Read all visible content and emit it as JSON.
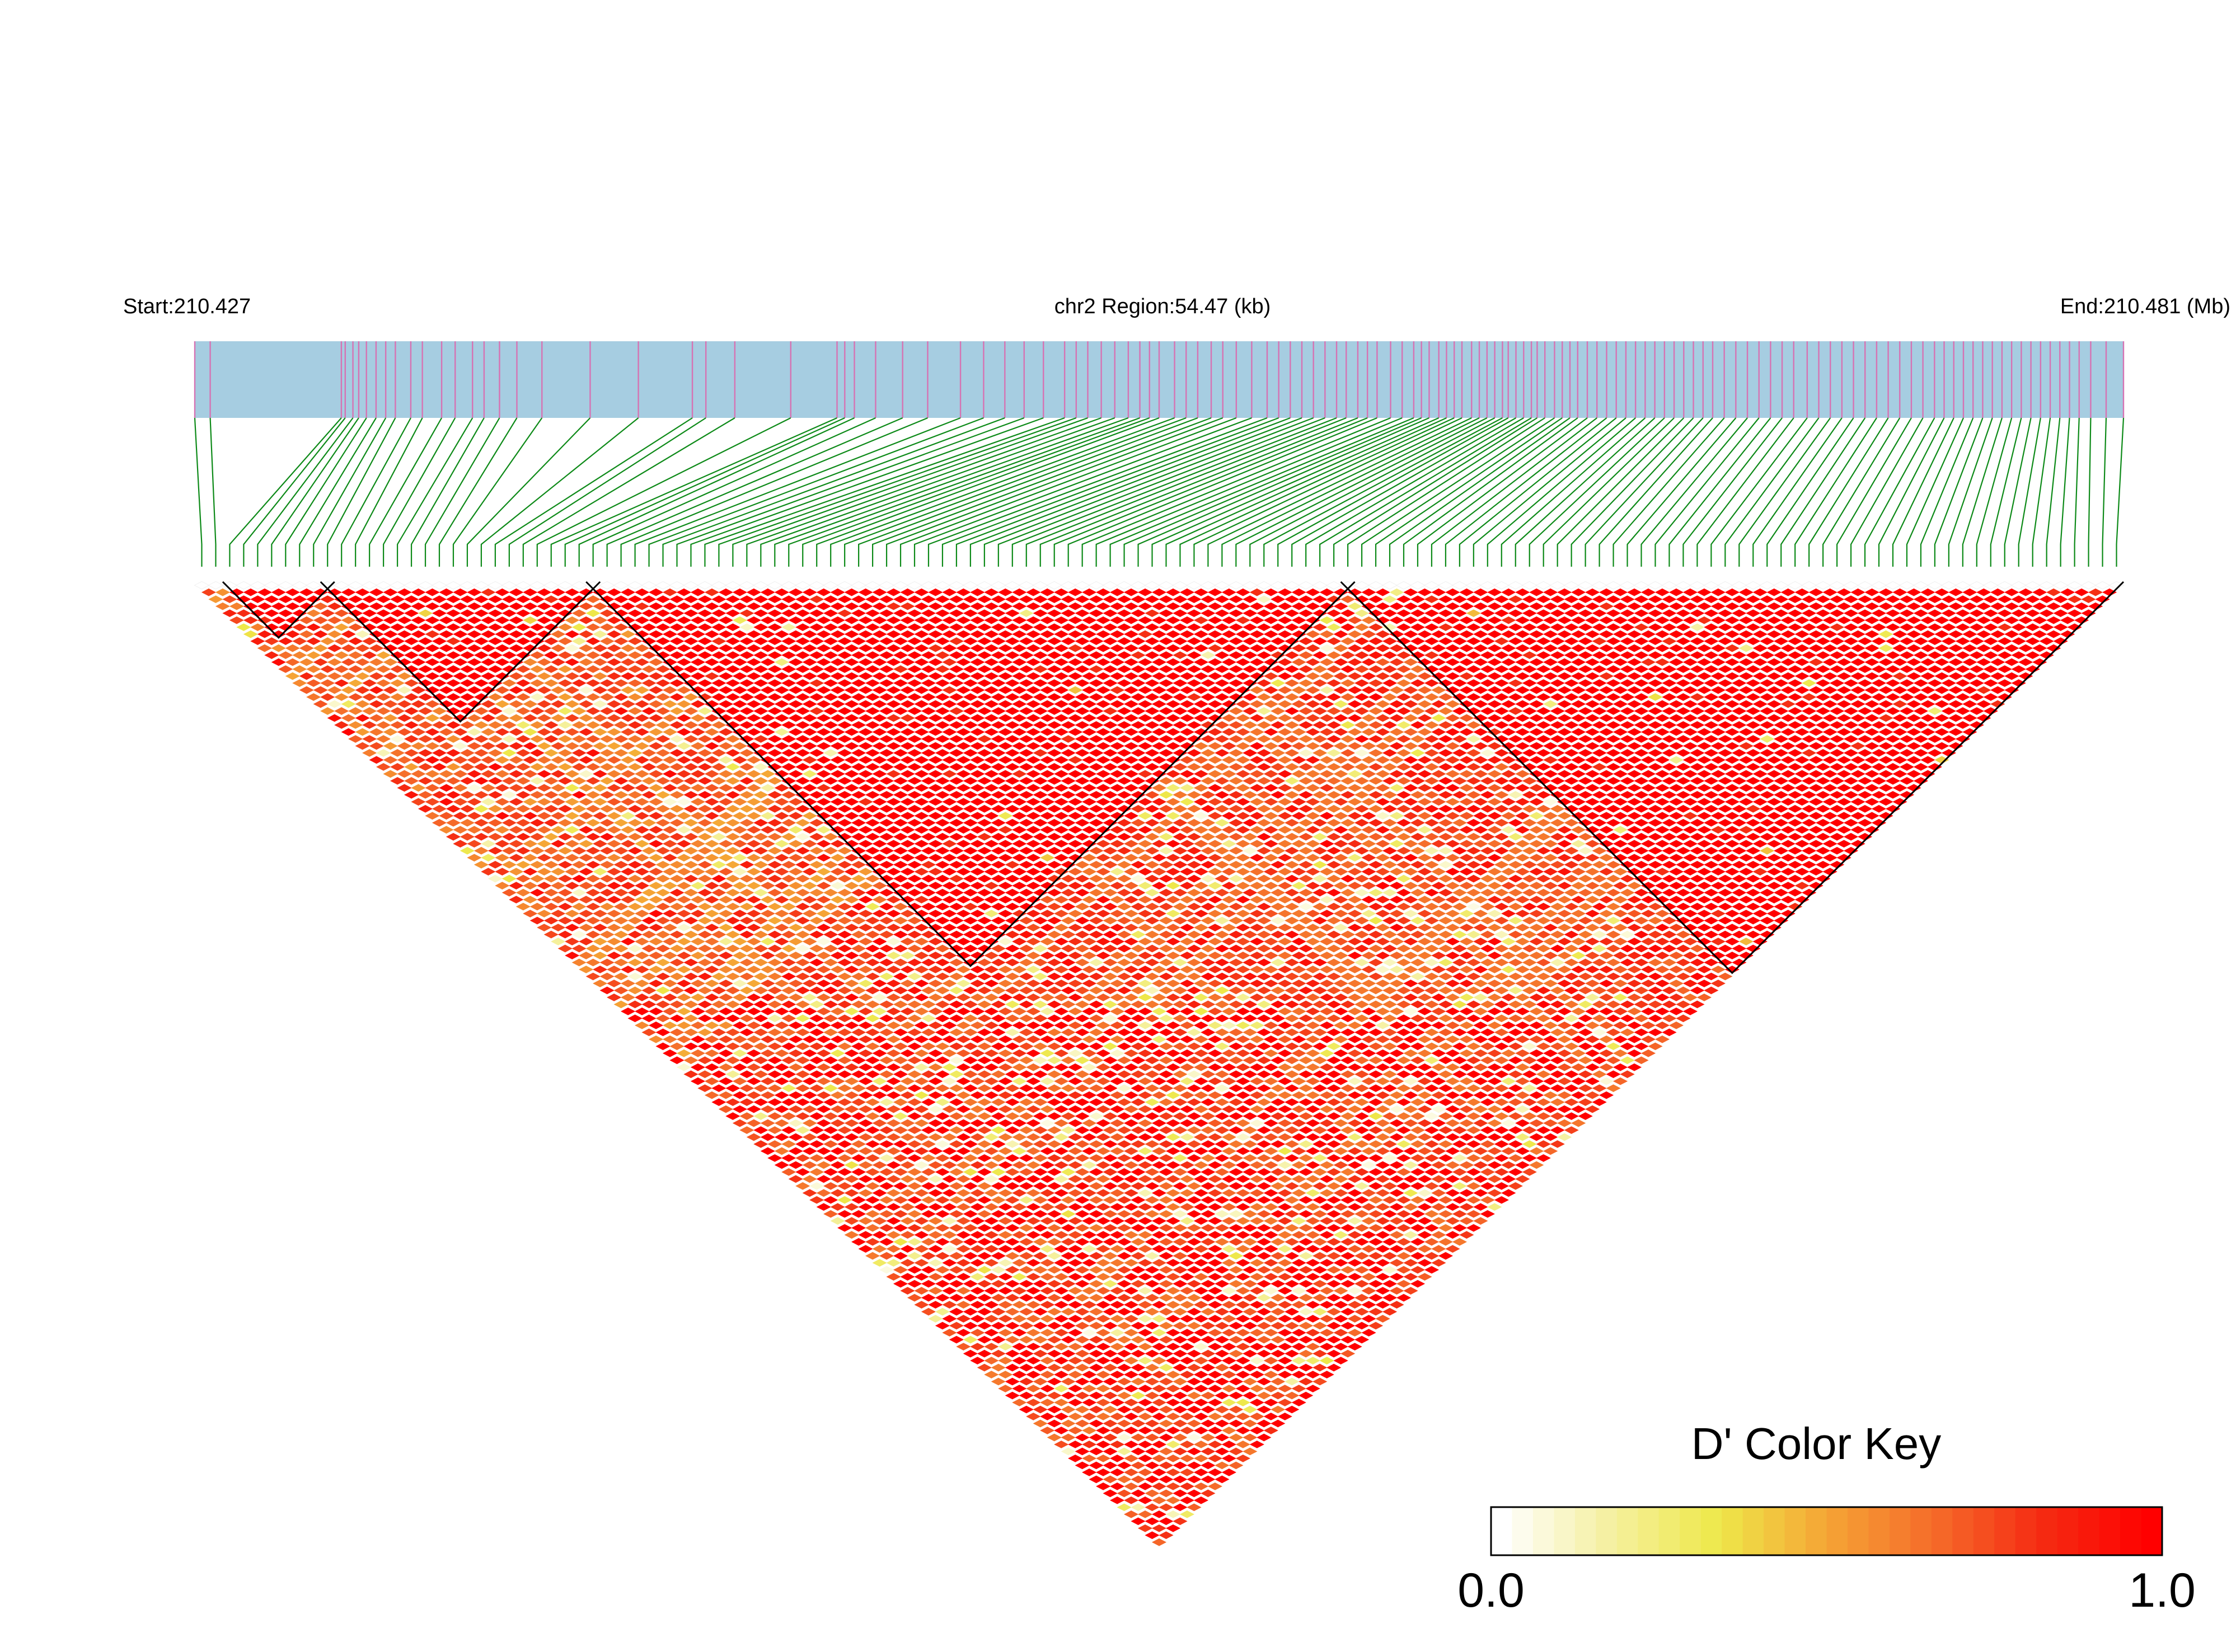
{
  "chart_data": {
    "type": "heatmap",
    "title": "",
    "chromosome": "chr2",
    "region_label": "chr2 Region:54.47 (kb)",
    "region_kb": 54.47,
    "start_label": "Start:210.427",
    "end_label": "End:210.481 (Mb)",
    "start_mb": 210.427,
    "end_mb": 210.481,
    "metric": "D'",
    "n_snps": 138,
    "snp_positions_relative": [
      0.0,
      0.008,
      0.076,
      0.078,
      0.082,
      0.085,
      0.089,
      0.094,
      0.099,
      0.104,
      0.112,
      0.118,
      0.128,
      0.135,
      0.144,
      0.15,
      0.158,
      0.167,
      0.18,
      0.205,
      0.23,
      0.258,
      0.265,
      0.28,
      0.309,
      0.333,
      0.337,
      0.342,
      0.353,
      0.367,
      0.38,
      0.397,
      0.409,
      0.42,
      0.43,
      0.44,
      0.451,
      0.457,
      0.463,
      0.47,
      0.477,
      0.484,
      0.49,
      0.495,
      0.5,
      0.508,
      0.514,
      0.52,
      0.527,
      0.533,
      0.54,
      0.548,
      0.556,
      0.562,
      0.568,
      0.574,
      0.58,
      0.586,
      0.592,
      0.597,
      0.603,
      0.608,
      0.613,
      0.62,
      0.626,
      0.632,
      0.636,
      0.64,
      0.645,
      0.649,
      0.653,
      0.657,
      0.662,
      0.666,
      0.67,
      0.674,
      0.678,
      0.681,
      0.685,
      0.689,
      0.693,
      0.696,
      0.7,
      0.705,
      0.709,
      0.713,
      0.717,
      0.722,
      0.727,
      0.732,
      0.737,
      0.742,
      0.747,
      0.752,
      0.757,
      0.762,
      0.767,
      0.772,
      0.777,
      0.782,
      0.787,
      0.793,
      0.799,
      0.805,
      0.811,
      0.817,
      0.823,
      0.829,
      0.836,
      0.842,
      0.848,
      0.854,
      0.86,
      0.866,
      0.872,
      0.878,
      0.884,
      0.89,
      0.896,
      0.902,
      0.907,
      0.912,
      0.917,
      0.922,
      0.927,
      0.932,
      0.937,
      0.942,
      0.947,
      0.952,
      0.957,
      0.962,
      0.967,
      0.972,
      0.977,
      0.983,
      0.991,
      1.0
    ],
    "ld_blocks": [
      {
        "first_snp": 2,
        "last_snp": 9
      },
      {
        "first_snp": 9,
        "last_snp": 28
      },
      {
        "first_snp": 28,
        "last_snp": 82
      },
      {
        "first_snp": 82,
        "last_snp": 137
      }
    ],
    "color_key": {
      "title": "D' Color Key",
      "min_label": "0.0",
      "max_label": "1.0",
      "min": 0.0,
      "max": 1.0,
      "stops": [
        "#ffffff",
        "#f5f0a0",
        "#eee84a",
        "#f5a535",
        "#f56b2a",
        "#f52a12",
        "#ff0000"
      ]
    },
    "colors": {
      "track_fill": "#a6cde1",
      "snp_tick": "#d673b3",
      "connector_line": "#0d8a18",
      "block_outline": "#000000",
      "high_ld": "#ff0000"
    }
  }
}
